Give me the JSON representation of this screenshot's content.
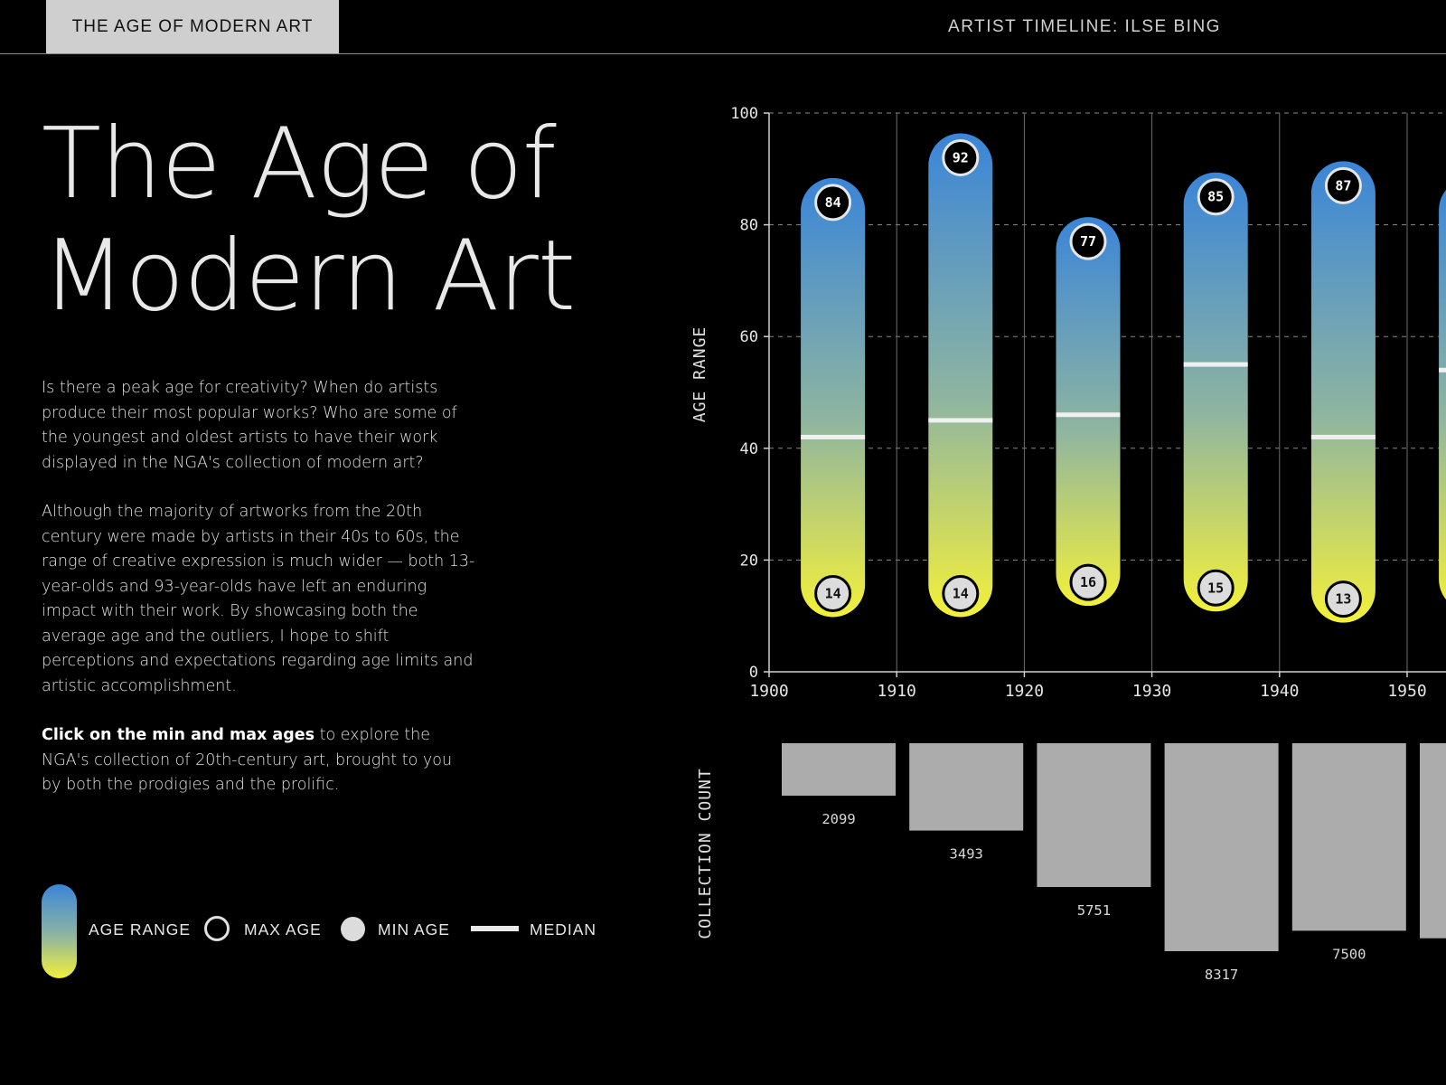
{
  "header": {
    "tab_active_label": "THE AGE OF MODERN ART",
    "tab_right_label": "ARTIST TIMELINE: ILSE BING"
  },
  "title": {
    "line1": "The Age of",
    "line2": "Modern Art"
  },
  "intro": {
    "p1": "Is there a peak age for creativity? When do artists produce their most popular works? Who are some of the youngest and oldest artists to have their work displayed in the NGA's collection of modern art?",
    "p2": "Although the majority of artworks from the 20th century were made by artists in their 40s to 60s, the range of creative expression is much wider — both 13-year-olds and 93-year-olds have left an enduring impact with their work. By showcasing both the average age and the outliers, I hope to shift perceptions and expectations regarding age limits and artistic accomplishment.",
    "p3_bold": "Click on the min and max ages",
    "p3_rest": " to explore the NGA's collection of 20th-century art, brought to you by both the prodigies and the prolific."
  },
  "legend": {
    "age_range": "AGE RANGE",
    "max_age": "MAX AGE",
    "min_age": "MIN AGE",
    "median": "MEDIAN"
  },
  "colors": {
    "gradient_top": "#3a85d8",
    "gradient_mid": "#8fb5a0",
    "gradient_bottom": "#f3f03a",
    "bar_gray": "#acacac",
    "grid": "#8a8a8a",
    "median": "#f0f0f0"
  },
  "chart_data": [
    {
      "type": "range",
      "ylabel": "AGE RANGE",
      "xlim": [
        1900,
        1955
      ],
      "ylim": [
        0,
        100
      ],
      "x_ticks": [
        1900,
        1910,
        1920,
        1930,
        1940,
        1950
      ],
      "y_ticks": [
        0,
        20,
        40,
        60,
        80,
        100
      ],
      "decades": [
        1900,
        1910,
        1920,
        1930,
        1940,
        1950
      ],
      "min": [
        14,
        14,
        16,
        15,
        13,
        15
      ],
      "max": [
        84,
        92,
        77,
        85,
        87,
        84
      ],
      "median": [
        42,
        45,
        46,
        55,
        42,
        54
      ],
      "grid": true
    },
    {
      "type": "bar",
      "ylabel": "COLLECTION COUNT",
      "decades": [
        1900,
        1910,
        1920,
        1930,
        1940,
        1950
      ],
      "values": [
        2099,
        3493,
        5751,
        8317,
        7500,
        7800
      ],
      "value_labels": [
        "2099",
        "3493",
        "5751",
        "8317",
        "7500",
        ""
      ]
    }
  ]
}
